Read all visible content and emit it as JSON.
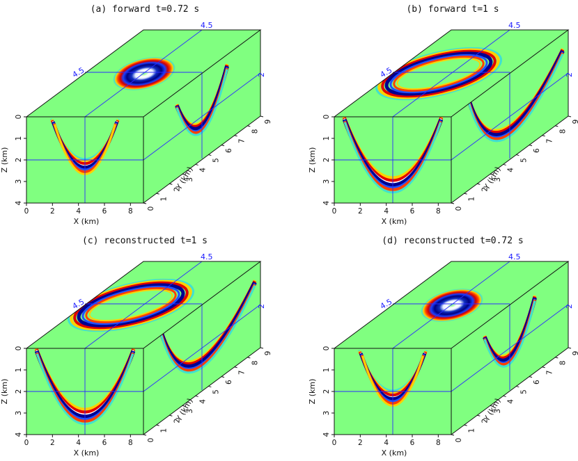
{
  "panels": [
    {
      "id": "a",
      "title": "(a) forward t=0.72 s",
      "variant": "small"
    },
    {
      "id": "b",
      "title": "(b) forward t=1 s",
      "variant": "large"
    },
    {
      "id": "c",
      "title": "(c) reconstructed t=1 s",
      "variant": "large"
    },
    {
      "id": "d",
      "title": "(d) reconstructed t=0.72 s",
      "variant": "small"
    }
  ],
  "axes": {
    "x_label": "X (km)",
    "y_label": "Y (km)",
    "z_label": "Z (km)",
    "x_ticks": [
      "0",
      "2",
      "4",
      "6",
      "8"
    ],
    "y_ticks": [
      "0",
      "1",
      "2",
      "3",
      "4",
      "5",
      "6",
      "7",
      "8",
      "9"
    ],
    "z_ticks": [
      "0",
      "1",
      "2",
      "3",
      "4"
    ],
    "slice_x": "4.5",
    "slice_y": "4.5",
    "slice_z": "2"
  },
  "colors": {
    "background": "#80ff80",
    "slice_lines": "#2b2bff"
  }
}
